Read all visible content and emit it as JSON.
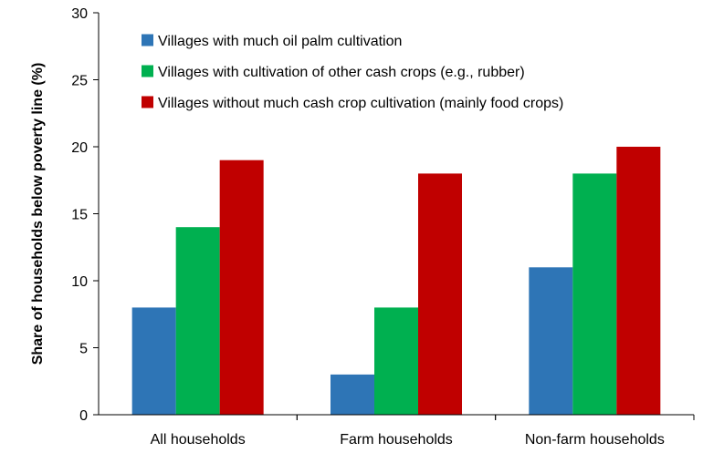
{
  "chart_data": {
    "type": "bar",
    "title": "",
    "xlabel": "",
    "ylabel": "Share of households below poverty line (%)",
    "ylim": [
      0,
      30
    ],
    "yticks": [
      0,
      5,
      10,
      15,
      20,
      25,
      30
    ],
    "grid": false,
    "legend_position": "top-right",
    "categories": [
      "All households",
      "Farm households",
      "Non-farm households"
    ],
    "series": [
      {
        "name": "Villages with much oil palm cultivation",
        "color": "#2E75B6",
        "values": [
          8,
          3,
          11
        ]
      },
      {
        "name": "Villages with cultivation of other cash crops (e.g., rubber)",
        "color": "#00B050",
        "values": [
          14,
          8,
          18
        ]
      },
      {
        "name": "Villages without much cash crop cultivation (mainly food crops)",
        "color": "#C00000",
        "values": [
          19,
          18,
          20
        ]
      }
    ]
  }
}
